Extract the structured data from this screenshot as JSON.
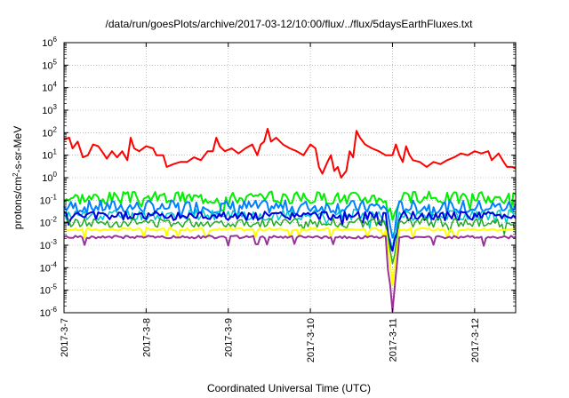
{
  "chart_data": {
    "type": "line",
    "title": "/data/run/goesPlots/archive/2017-03-12/10:00/flux/../flux/5daysEarthFluxes.txt",
    "xlabel": "Coordinated Universal Time (UTC)",
    "ylabel": {
      "base": "protons/cm",
      "sup": "2",
      "rest": "-s-sr-MeV"
    },
    "y_scale": "log",
    "ylim": [
      1e-06,
      1000000.0
    ],
    "y_ticks": [
      {
        "value": 1e-06,
        "base": "10",
        "exp": "-6"
      },
      {
        "value": 1e-05,
        "base": "10",
        "exp": "-5"
      },
      {
        "value": 0.0001,
        "base": "10",
        "exp": "-4"
      },
      {
        "value": 0.001,
        "base": "10",
        "exp": "-3"
      },
      {
        "value": 0.01,
        "base": "10",
        "exp": "-2"
      },
      {
        "value": 0.1,
        "base": "10",
        "exp": "-1"
      },
      {
        "value": 1,
        "base": "10",
        "exp": "0"
      },
      {
        "value": 10,
        "base": "10",
        "exp": "1"
      },
      {
        "value": 100,
        "base": "10",
        "exp": "2"
      },
      {
        "value": 1000,
        "base": "10",
        "exp": "3"
      },
      {
        "value": 10000,
        "base": "10",
        "exp": "4"
      },
      {
        "value": 100000,
        "base": "10",
        "exp": "5"
      },
      {
        "value": 1000000,
        "base": "10",
        "exp": "6"
      }
    ],
    "xlim": [
      "2017-03-07 00:00",
      "2017-03-12 12:00"
    ],
    "x_ticks": [
      {
        "x": "2017-03-07 00:00",
        "label": "2017-3-7"
      },
      {
        "x": "2017-03-08 00:00",
        "label": "2017-3-8"
      },
      {
        "x": "2017-03-09 00:00",
        "label": "2017-3-9"
      },
      {
        "x": "2017-03-10 00:00",
        "label": "2017-3-10"
      },
      {
        "x": "2017-03-11 00:00",
        "label": "2017-3-11"
      },
      {
        "x": "2017-03-12 00:00",
        "label": "2017-3-12"
      }
    ],
    "grid": true,
    "series": [
      {
        "color": "#ff0000",
        "width": 2,
        "points": [
          [
            "2017-03-07 00:00",
            50
          ],
          [
            "2017-03-07 01:30",
            60
          ],
          [
            "2017-03-07 02:30",
            20
          ],
          [
            "2017-03-07 04:00",
            40
          ],
          [
            "2017-03-07 05:30",
            8
          ],
          [
            "2017-03-07 07:00",
            10
          ],
          [
            "2017-03-07 08:30",
            30
          ],
          [
            "2017-03-07 10:00",
            25
          ],
          [
            "2017-03-07 11:30",
            12
          ],
          [
            "2017-03-07 12:30",
            7
          ],
          [
            "2017-03-07 14:00",
            15
          ],
          [
            "2017-03-07 15:30",
            8
          ],
          [
            "2017-03-07 17:00",
            15
          ],
          [
            "2017-03-07 18:30",
            6
          ],
          [
            "2017-03-07 19:30",
            60
          ],
          [
            "2017-03-07 20:30",
            20
          ],
          [
            "2017-03-07 22:00",
            15
          ],
          [
            "2017-03-08 00:00",
            25
          ],
          [
            "2017-03-08 02:00",
            20
          ],
          [
            "2017-03-08 03:00",
            10
          ],
          [
            "2017-03-08 05:00",
            10
          ],
          [
            "2017-03-08 06:00",
            3
          ],
          [
            "2017-03-08 08:00",
            4
          ],
          [
            "2017-03-08 10:00",
            5
          ],
          [
            "2017-03-08 12:00",
            5
          ],
          [
            "2017-03-08 14:00",
            8
          ],
          [
            "2017-03-08 16:00",
            6
          ],
          [
            "2017-03-08 18:00",
            15
          ],
          [
            "2017-03-08 19:30",
            15
          ],
          [
            "2017-03-08 20:30",
            60
          ],
          [
            "2017-03-08 21:30",
            25
          ],
          [
            "2017-03-08 23:00",
            15
          ],
          [
            "2017-03-09 01:00",
            20
          ],
          [
            "2017-03-09 03:00",
            12
          ],
          [
            "2017-03-09 05:00",
            20
          ],
          [
            "2017-03-09 07:00",
            30
          ],
          [
            "2017-03-09 08:30",
            10
          ],
          [
            "2017-03-09 09:30",
            30
          ],
          [
            "2017-03-09 10:30",
            40
          ],
          [
            "2017-03-09 11:30",
            150
          ],
          [
            "2017-03-09 12:30",
            40
          ],
          [
            "2017-03-09 14:00",
            60
          ],
          [
            "2017-03-09 16:00",
            30
          ],
          [
            "2017-03-09 18:00",
            20
          ],
          [
            "2017-03-09 20:00",
            15
          ],
          [
            "2017-03-09 22:00",
            10
          ],
          [
            "2017-03-10 00:00",
            30
          ],
          [
            "2017-03-10 01:30",
            20
          ],
          [
            "2017-03-10 02:30",
            3
          ],
          [
            "2017-03-10 03:30",
            1.5
          ],
          [
            "2017-03-10 05:00",
            5
          ],
          [
            "2017-03-10 06:00",
            10
          ],
          [
            "2017-03-10 07:00",
            2
          ],
          [
            "2017-03-10 08:00",
            3
          ],
          [
            "2017-03-10 09:00",
            1
          ],
          [
            "2017-03-10 10:30",
            2
          ],
          [
            "2017-03-10 11:30",
            15
          ],
          [
            "2017-03-10 12:30",
            8
          ],
          [
            "2017-03-10 13:30",
            120
          ],
          [
            "2017-03-10 14:30",
            60
          ],
          [
            "2017-03-10 16:00",
            30
          ],
          [
            "2017-03-10 18:00",
            20
          ],
          [
            "2017-03-10 20:00",
            15
          ],
          [
            "2017-03-10 22:00",
            10
          ],
          [
            "2017-03-11 00:00",
            10
          ],
          [
            "2017-03-11 01:00",
            30
          ],
          [
            "2017-03-11 02:00",
            10
          ],
          [
            "2017-03-11 03:00",
            5
          ],
          [
            "2017-03-11 04:00",
            25
          ],
          [
            "2017-03-11 05:00",
            10
          ],
          [
            "2017-03-11 06:00",
            6
          ],
          [
            "2017-03-11 08:00",
            5
          ],
          [
            "2017-03-11 10:00",
            3
          ],
          [
            "2017-03-11 12:00",
            5
          ],
          [
            "2017-03-11 14:00",
            4
          ],
          [
            "2017-03-11 16:00",
            6
          ],
          [
            "2017-03-11 18:00",
            8
          ],
          [
            "2017-03-11 20:00",
            12
          ],
          [
            "2017-03-11 22:00",
            10
          ],
          [
            "2017-03-12 00:00",
            15
          ],
          [
            "2017-03-12 02:00",
            12
          ],
          [
            "2017-03-12 04:00",
            15
          ],
          [
            "2017-03-12 05:00",
            6
          ],
          [
            "2017-03-12 07:00",
            12
          ],
          [
            "2017-03-12 08:30",
            5
          ],
          [
            "2017-03-12 09:30",
            3
          ],
          [
            "2017-03-12 11:00",
            3
          ],
          [
            "2017-03-12 12:00",
            2.5
          ]
        ]
      },
      {
        "color": "#00ee00",
        "width": 2,
        "base": 0.13,
        "amp": 0.28,
        "seed": 3,
        "dip": 0.9
      },
      {
        "color": "#0080ff",
        "width": 2,
        "base": 0.05,
        "amp": 0.3,
        "seed": 7,
        "dip": 1.3
      },
      {
        "color": "#00c8c8",
        "width": 1.5,
        "base": 0.022,
        "amp": 0.25,
        "seed": 11,
        "dip": 1.5
      },
      {
        "color": "#0000dd",
        "width": 2,
        "base": 0.02,
        "amp": 0.2,
        "seed": 5,
        "dip": 1.7
      },
      {
        "color": "#22aa22",
        "width": 1.5,
        "base": 0.01,
        "amp": 0.2,
        "seed": 13,
        "dip": 2.0
      },
      {
        "color": "#ffff00",
        "width": 2,
        "base": 0.005,
        "amp": 0.06,
        "seed": 17,
        "dip": 2.4
      },
      {
        "color": "#993399",
        "width": 2,
        "base": 0.0023,
        "amp": 0.06,
        "seed": 19,
        "dip": 3.3
      }
    ]
  }
}
